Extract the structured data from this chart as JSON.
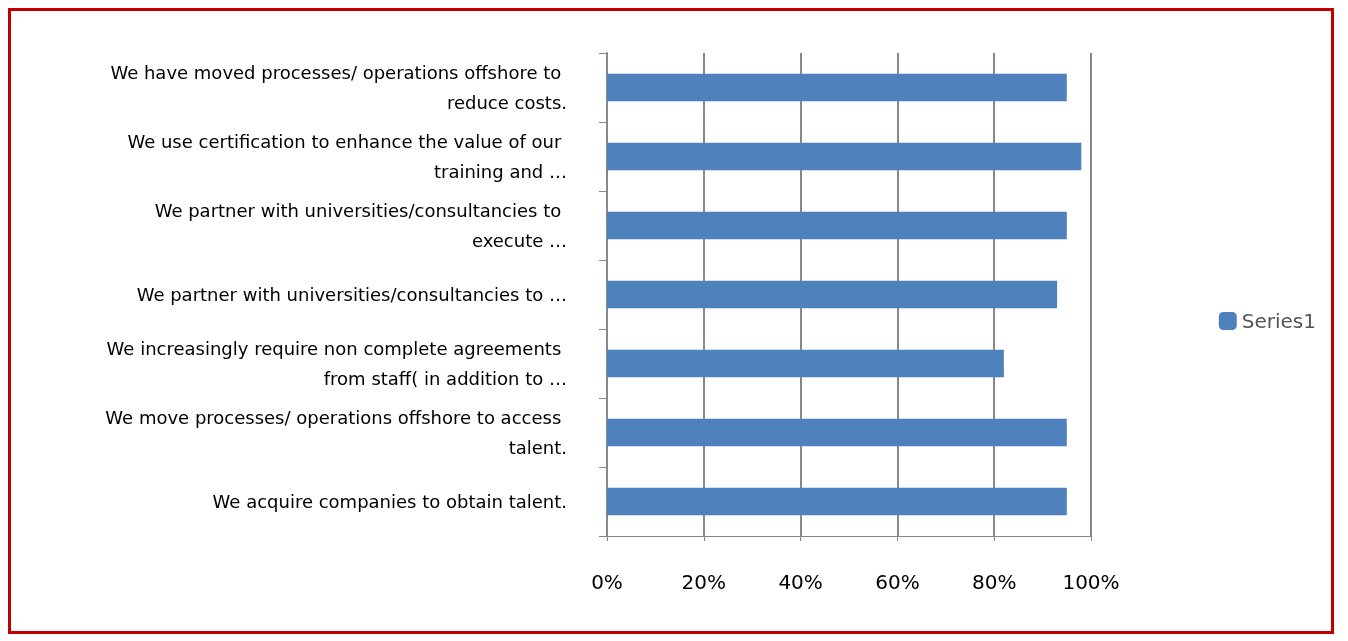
{
  "chart_data": {
    "type": "bar",
    "orientation": "horizontal",
    "categories": [
      "We have moved processes/ operations offshore to reduce costs.",
      "We use certification to enhance the value of our training and …",
      "We partner with universities/consultancies to execute …",
      "We partner with universities/consultancies to …",
      "We increasingly require non complete agreements from staff( in addition to …",
      "We move processes/ operations offshore to access talent.",
      "We acquire companies to obtain talent."
    ],
    "series": [
      {
        "name": "Series1",
        "color": "#4f81bd",
        "values": [
          95,
          98,
          95,
          93,
          82,
          95,
          95
        ]
      }
    ],
    "xlim": [
      0,
      100
    ],
    "xticks": [
      {
        "value": 0,
        "label": "0%"
      },
      {
        "value": 20,
        "label": "20%"
      },
      {
        "value": 40,
        "label": "40%"
      },
      {
        "value": 60,
        "label": "60%"
      },
      {
        "value": 80,
        "label": "80%"
      },
      {
        "value": 100,
        "label": "100%"
      }
    ],
    "grid": "x",
    "legend": "right"
  }
}
